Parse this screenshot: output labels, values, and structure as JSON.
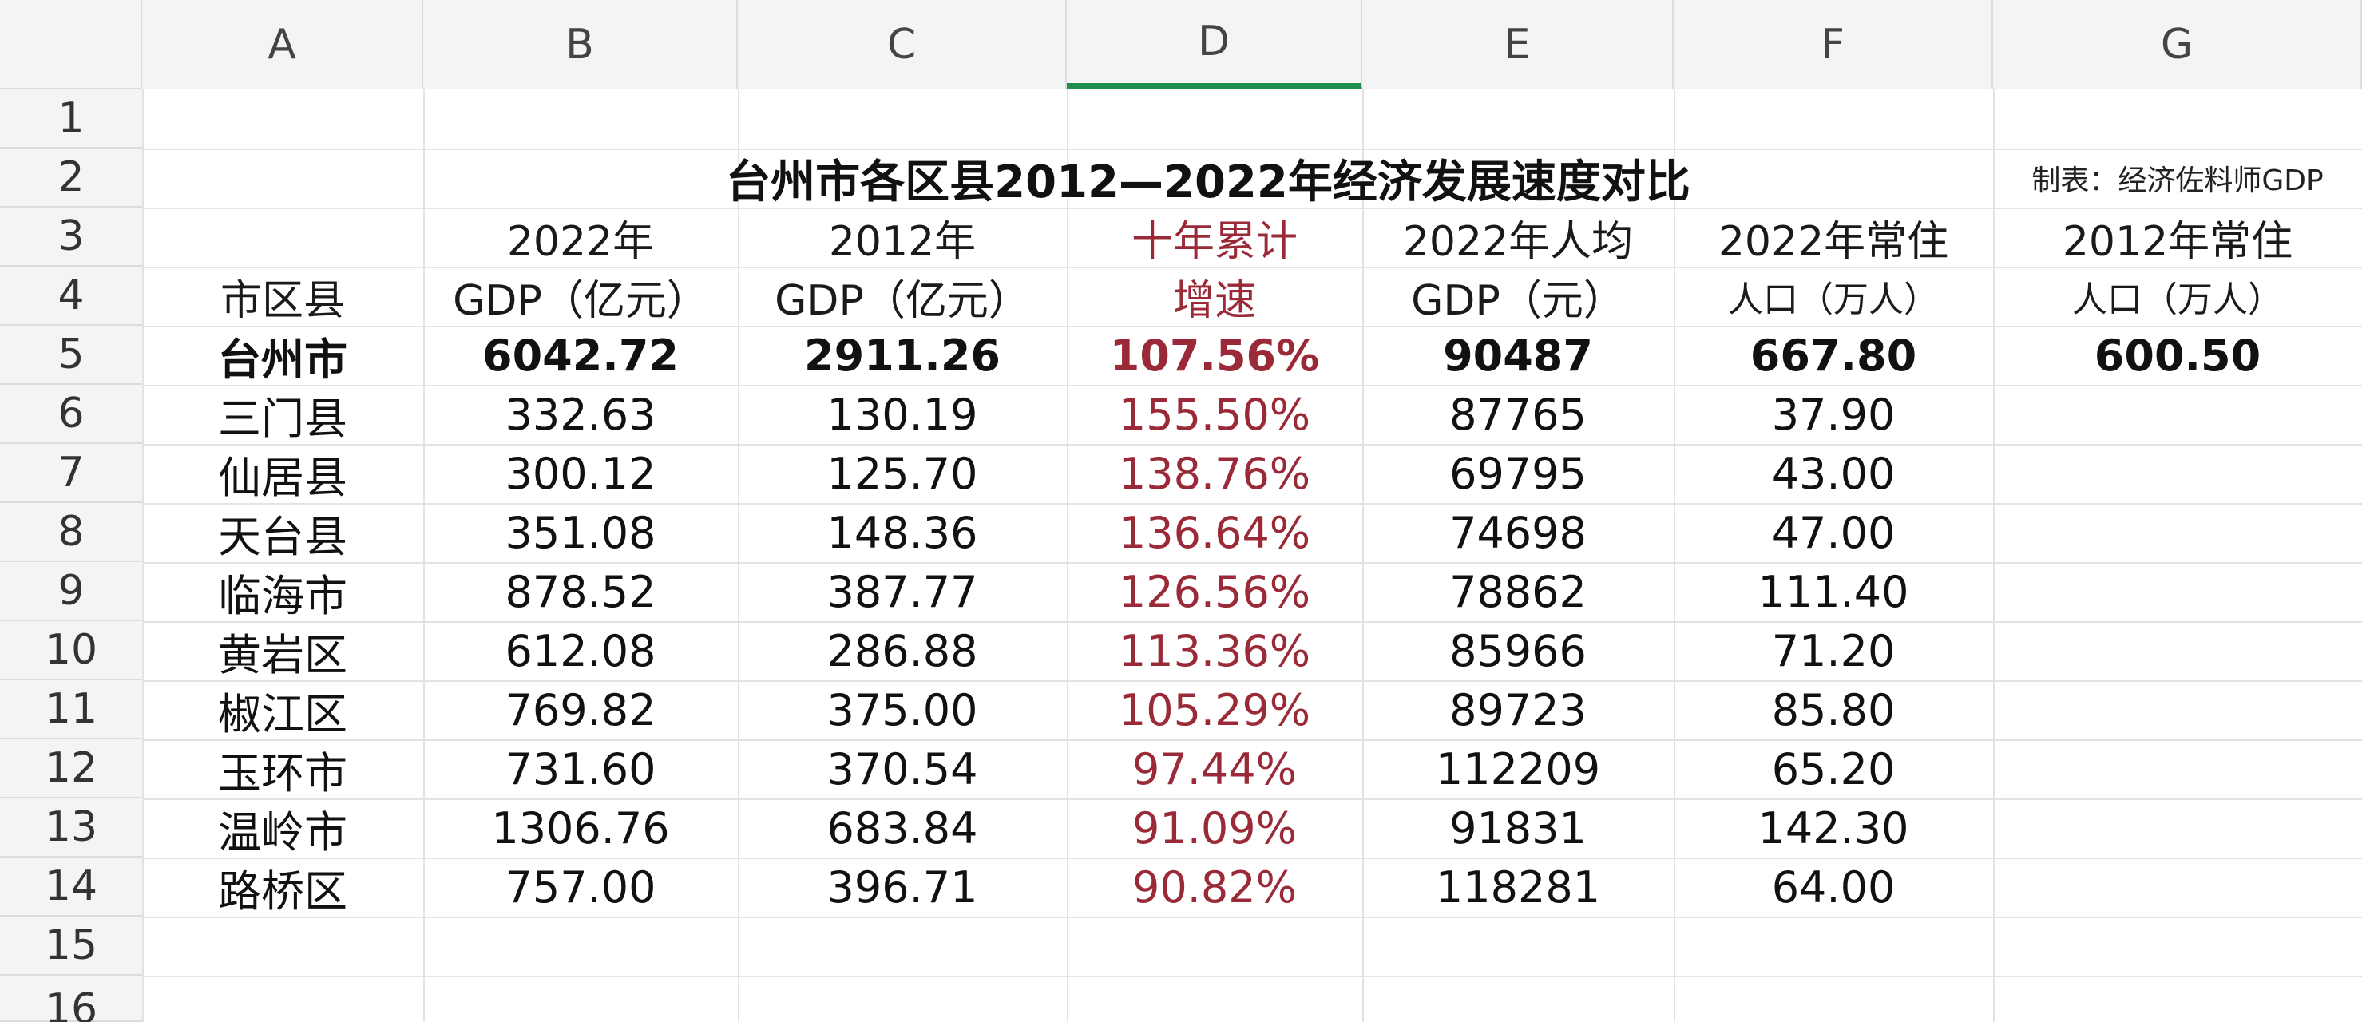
{
  "columns": [
    "A",
    "B",
    "C",
    "D",
    "E",
    "F",
    "G"
  ],
  "rows": [
    "1",
    "2",
    "3",
    "4",
    "5",
    "6",
    "7",
    "8",
    "9",
    "10",
    "11",
    "12",
    "13",
    "14",
    "15",
    "16"
  ],
  "title": "台州市各区县2012—2022年经济发展速度对比",
  "credit": "制表：经济佐料师GDP",
  "headers": {
    "county": "市区县",
    "gdp2022_line1": "2022年",
    "gdp2022_line2": "GDP（亿元）",
    "gdp2012_line1": "2012年",
    "gdp2012_line2": "GDP（亿元）",
    "growth_line1": "十年累计",
    "growth_line2": "增速",
    "percap_line1": "2022年人均",
    "percap_line2": "GDP（元）",
    "pop2022_line1": "2022年常住",
    "pop2022_line2": "人口（万人）",
    "pop2012_line1": "2012年常住",
    "pop2012_line2": "人口（万人）"
  },
  "total": {
    "name": "台州市",
    "gdp2022": "6042.72",
    "gdp2012": "2911.26",
    "growth": "107.56%",
    "percap": "90487",
    "pop2022": "667.80",
    "pop2012": "600.50"
  },
  "districts": [
    {
      "name": "三门县",
      "gdp2022": "332.63",
      "gdp2012": "130.19",
      "growth": "155.50%",
      "percap": "87765",
      "pop2022": "37.90"
    },
    {
      "name": "仙居县",
      "gdp2022": "300.12",
      "gdp2012": "125.70",
      "growth": "138.76%",
      "percap": "69795",
      "pop2022": "43.00"
    },
    {
      "name": "天台县",
      "gdp2022": "351.08",
      "gdp2012": "148.36",
      "growth": "136.64%",
      "percap": "74698",
      "pop2022": "47.00"
    },
    {
      "name": "临海市",
      "gdp2022": "878.52",
      "gdp2012": "387.77",
      "growth": "126.56%",
      "percap": "78862",
      "pop2022": "111.40"
    },
    {
      "name": "黄岩区",
      "gdp2022": "612.08",
      "gdp2012": "286.88",
      "growth": "113.36%",
      "percap": "85966",
      "pop2022": "71.20"
    },
    {
      "name": "椒江区",
      "gdp2022": "769.82",
      "gdp2012": "375.00",
      "growth": "105.29%",
      "percap": "89723",
      "pop2022": "85.80"
    },
    {
      "name": "玉环市",
      "gdp2022": "731.60",
      "gdp2012": "370.54",
      "growth": "97.44%",
      "percap": "112209",
      "pop2022": "65.20"
    },
    {
      "name": "温岭市",
      "gdp2022": "1306.76",
      "gdp2012": "683.84",
      "growth": "91.09%",
      "percap": "91831",
      "pop2022": "142.30"
    },
    {
      "name": "路桥区",
      "gdp2022": "757.00",
      "gdp2012": "396.71",
      "growth": "90.82%",
      "percap": "118281",
      "pop2022": "64.00"
    }
  ],
  "colors": {
    "growth_text": "#9a2a38",
    "active_column": "#1e8e4e"
  }
}
